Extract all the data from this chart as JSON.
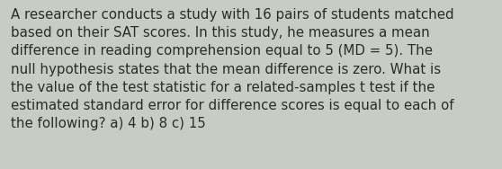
{
  "text": "A researcher conducts a study with 16 pairs of students matched\nbased on their SAT scores. In this study, he measures a mean\ndifference in reading comprehension equal to 5 (MD = 5). The\nnull hypothesis states that the mean difference is zero. What is\nthe value of the test statistic for a related-samples t test if the\nestimated standard error for difference scores is equal to each of\nthe following? a) 4 b) 8 c) 15",
  "background_color": "#c8cdc4",
  "text_color": "#2b2b2b",
  "font_size": 10.8,
  "fig_width": 5.58,
  "fig_height": 1.88,
  "dpi": 100
}
